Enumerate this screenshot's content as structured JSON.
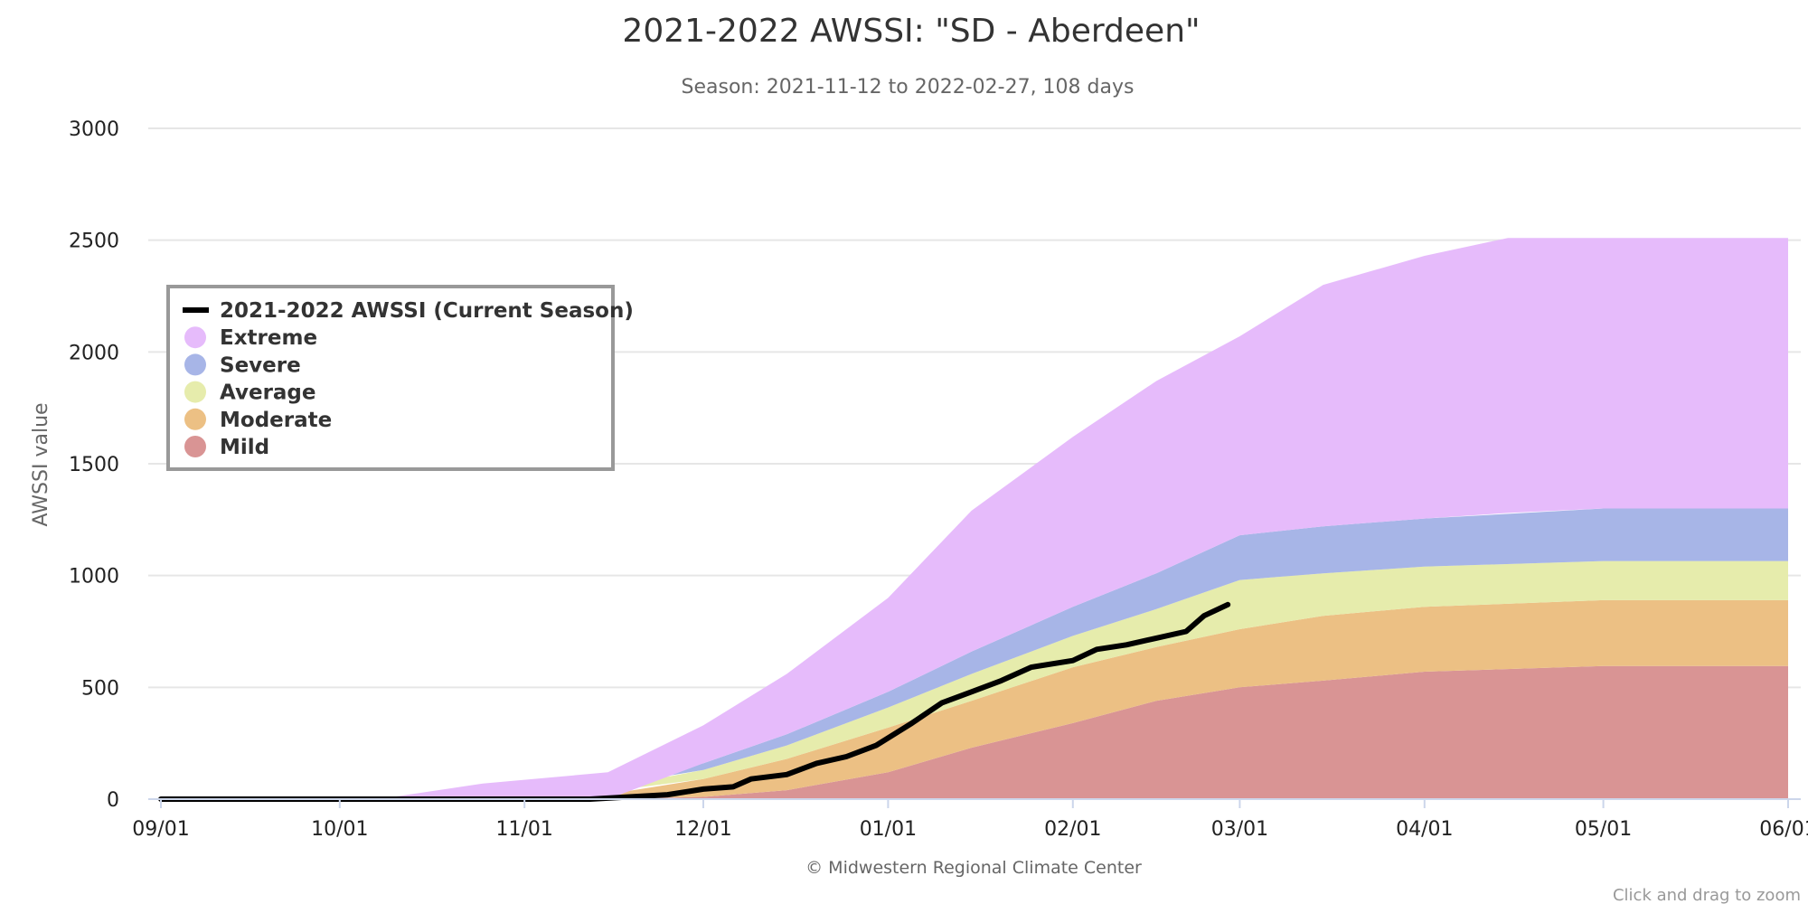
{
  "chart_data": {
    "type": "area",
    "title": "2021-2022 AWSSI: \"SD - Aberdeen\"",
    "subtitle": "Season: 2021-11-12 to 2022-02-27, 108 days",
    "ylabel": "AWSSI value",
    "ylim": [
      0,
      3000
    ],
    "y_ticks": [
      0,
      500,
      1000,
      1500,
      2000,
      2500,
      3000
    ],
    "x_ticks": [
      "09/01",
      "10/01",
      "11/01",
      "12/01",
      "01/01",
      "02/01",
      "03/01",
      "04/01",
      "05/01",
      "06/01"
    ],
    "x_tick_dates": [
      "2021-09-01",
      "2021-10-01",
      "2021-11-01",
      "2021-12-01",
      "2022-01-01",
      "2022-02-01",
      "2022-03-01",
      "2022-04-01",
      "2022-05-01",
      "2022-06-01"
    ],
    "xlim": [
      "2021-09-01",
      "2022-06-01"
    ],
    "grid": true,
    "legend_position": "top-left",
    "bands": [
      {
        "name": "Mild",
        "color": "#d99494",
        "x": [
          "2021-11-15",
          "2021-12-01",
          "2021-12-15",
          "2022-01-01",
          "2022-01-15",
          "2022-02-01",
          "2022-02-15",
          "2022-03-01",
          "2022-03-15",
          "2022-04-01",
          "2022-05-01",
          "2022-06-01"
        ],
        "lower": [
          0,
          0,
          0,
          0,
          0,
          0,
          0,
          0,
          0,
          0,
          0,
          0
        ],
        "upper": [
          0,
          10,
          40,
          120,
          230,
          340,
          440,
          500,
          530,
          570,
          595,
          595
        ]
      },
      {
        "name": "Moderate",
        "color": "#ecc084",
        "x": [
          "2021-11-10",
          "2021-12-01",
          "2021-12-15",
          "2022-01-01",
          "2022-01-15",
          "2022-02-01",
          "2022-02-15",
          "2022-03-01",
          "2022-03-15",
          "2022-04-01",
          "2022-05-01",
          "2022-06-01"
        ],
        "lower": [
          0,
          10,
          40,
          120,
          230,
          340,
          440,
          500,
          530,
          570,
          595,
          595
        ],
        "upper": [
          0,
          90,
          180,
          320,
          440,
          590,
          680,
          760,
          820,
          860,
          890,
          890
        ]
      },
      {
        "name": "Average",
        "color": "#e6ecac",
        "x": [
          "2021-11-05",
          "2021-12-01",
          "2021-12-15",
          "2022-01-01",
          "2022-01-15",
          "2022-02-01",
          "2022-02-15",
          "2022-03-01",
          "2022-03-15",
          "2022-04-01",
          "2022-05-01",
          "2022-06-01"
        ],
        "lower": [
          0,
          90,
          180,
          320,
          440,
          590,
          680,
          760,
          820,
          860,
          890,
          890
        ],
        "upper": [
          0,
          130,
          240,
          410,
          560,
          730,
          850,
          980,
          1010,
          1040,
          1065,
          1065
        ]
      },
      {
        "name": "Severe",
        "color": "#a7b5e7",
        "x": [
          "2021-11-01",
          "2021-12-01",
          "2021-12-15",
          "2022-01-01",
          "2022-01-15",
          "2022-02-01",
          "2022-02-15",
          "2022-03-01",
          "2022-03-15",
          "2022-04-01",
          "2022-05-01",
          "2022-06-01"
        ],
        "lower": [
          0,
          130,
          240,
          410,
          560,
          730,
          850,
          980,
          1010,
          1040,
          1065,
          1065
        ],
        "upper": [
          0,
          160,
          290,
          480,
          660,
          860,
          1010,
          1180,
          1220,
          1255,
          1300,
          1300
        ]
      },
      {
        "name": "Extreme",
        "color": "#e6bbfb",
        "x": [
          "2021-10-10",
          "2021-10-25",
          "2021-11-15",
          "2021-12-01",
          "2021-12-15",
          "2022-01-01",
          "2022-01-15",
          "2022-02-01",
          "2022-02-15",
          "2022-03-01",
          "2022-03-15",
          "2022-04-01",
          "2022-04-15",
          "2022-05-01",
          "2022-06-01"
        ],
        "lower": [
          0,
          0,
          0,
          160,
          290,
          480,
          660,
          860,
          1010,
          1180,
          1220,
          1255,
          1280,
          1300,
          1300
        ],
        "upper": [
          10,
          70,
          120,
          330,
          560,
          900,
          1290,
          1620,
          1870,
          2070,
          2300,
          2430,
          2510,
          2510,
          2510
        ]
      },
      {
        "name": "Extreme",
        "color": "#e6bbfb",
        "x": [
          "2021-12-01",
          "2022-01-01",
          "2022-02-01",
          "2022-03-01",
          "2022-04-01",
          "2022-04-15",
          "2022-05-01",
          "2022-06-01"
        ],
        "lower": [
          160,
          480,
          860,
          1180,
          1255,
          1280,
          1300,
          1300
        ],
        "upper": [
          160,
          480,
          860,
          1180,
          1255,
          1280,
          1300,
          1300
        ]
      }
    ],
    "upper_boundaries": [
      {
        "name": "Severe",
        "x": [
          "2022-01-15",
          "2022-02-01",
          "2022-02-15",
          "2022-03-01",
          "2022-03-15",
          "2022-04-01",
          "2022-05-01",
          "2022-06-01"
        ],
        "values": [
          660,
          860,
          1010,
          1180,
          1220,
          1255,
          1300,
          1300
        ]
      }
    ],
    "series": [
      {
        "name": "2021-2022 AWSSI (Current Season)",
        "color": "#000000",
        "x": [
          "2021-09-01",
          "2021-11-12",
          "2021-11-25",
          "2021-12-01",
          "2021-12-06",
          "2021-12-09",
          "2021-12-15",
          "2021-12-20",
          "2021-12-25",
          "2021-12-30",
          "2022-01-05",
          "2022-01-10",
          "2022-01-15",
          "2022-01-20",
          "2022-01-25",
          "2022-02-01",
          "2022-02-05",
          "2022-02-10",
          "2022-02-15",
          "2022-02-20",
          "2022-02-23",
          "2022-02-27"
        ],
        "values": [
          0,
          0,
          20,
          45,
          55,
          90,
          110,
          160,
          190,
          240,
          340,
          430,
          480,
          530,
          590,
          620,
          670,
          690,
          720,
          750,
          820,
          870
        ]
      }
    ],
    "legend": [
      {
        "label": "2021-2022 AWSSI (Current Season)",
        "kind": "line",
        "color": "#000000"
      },
      {
        "label": "Extreme",
        "kind": "marker",
        "color": "#e6bbfb"
      },
      {
        "label": "Severe",
        "kind": "marker",
        "color": "#a7b5e7"
      },
      {
        "label": "Average",
        "kind": "marker",
        "color": "#e6ecac"
      },
      {
        "label": "Moderate",
        "kind": "marker",
        "color": "#ecc084"
      },
      {
        "label": "Mild",
        "kind": "marker",
        "color": "#d99494"
      }
    ],
    "credits": "© Midwestern Regional Climate Center",
    "zoom_hint": "Click and drag to zoom"
  }
}
